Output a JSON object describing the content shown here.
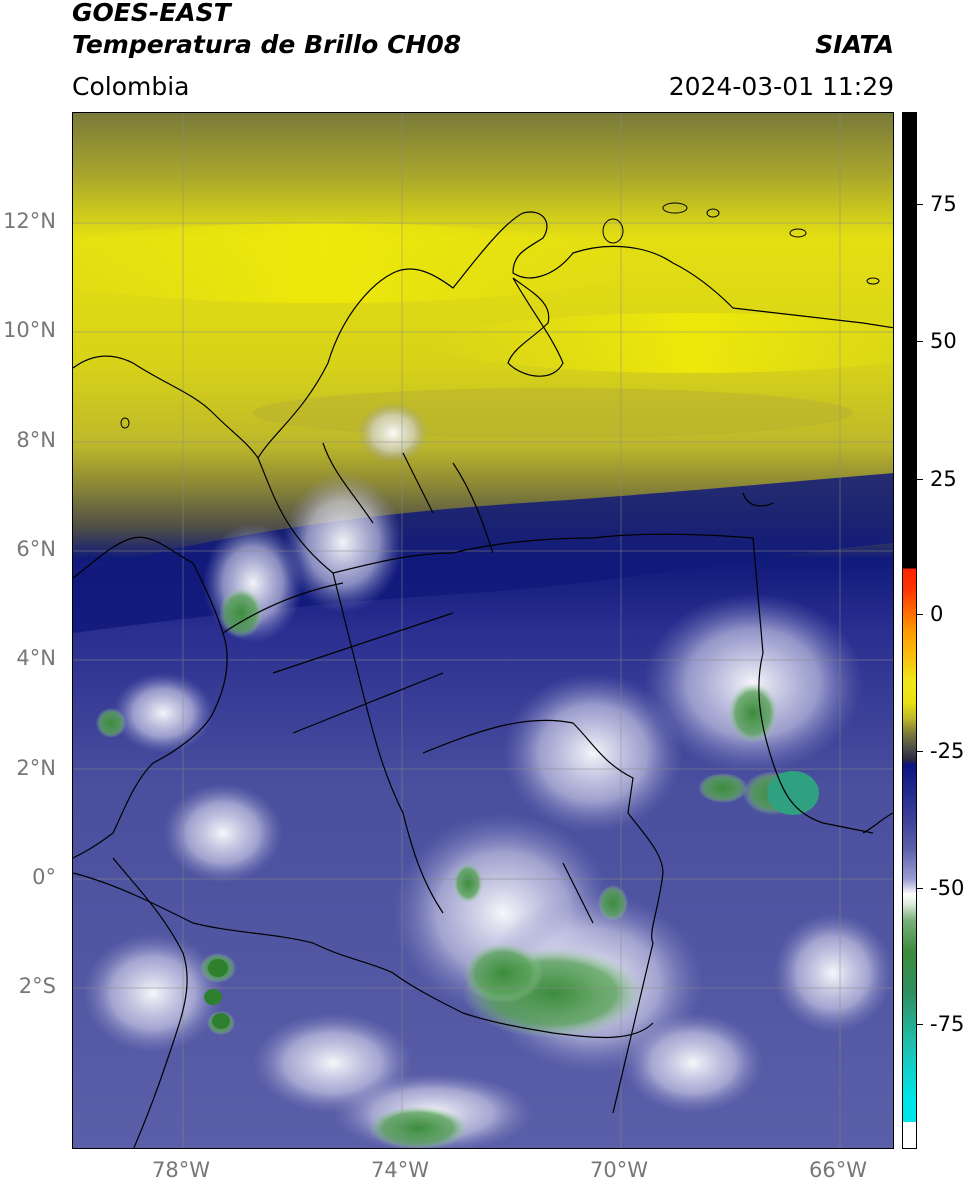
{
  "header": {
    "satellite": "GOES-EAST",
    "product": "Temperatura de Brillo CH08",
    "region": "Colombia",
    "agency": "SIATA",
    "datetime": "2024-03-01 11:29"
  },
  "map": {
    "lat_labels": [
      "12°N",
      "10°N",
      "8°N",
      "6°N",
      "4°N",
      "2°N",
      "0°",
      "2°S"
    ],
    "lon_labels": [
      "78°W",
      "74°W",
      "70°W",
      "66°W"
    ],
    "lat_range": [
      -4.6,
      14.0
    ],
    "lon_range": [
      -80.0,
      -65.0
    ],
    "grid": true
  },
  "colorbar": {
    "tick_labels": [
      "75",
      "50",
      "25",
      "0",
      "-25",
      "-50",
      "-75"
    ],
    "range": [
      -95,
      90
    ],
    "colors": {
      "black": "#000000",
      "red": "#ff2200",
      "orange": "#ff9900",
      "yellow": "#f0e81a",
      "olive": "#bdb82a",
      "dark_gray": "#4a4a4a",
      "navy": "#0a1480",
      "blue_gray": "#5b5fa8",
      "white": "#ffffff",
      "green": "#3c8c3c",
      "teal": "#20c0b0",
      "cyan": "#00e5e5"
    }
  }
}
